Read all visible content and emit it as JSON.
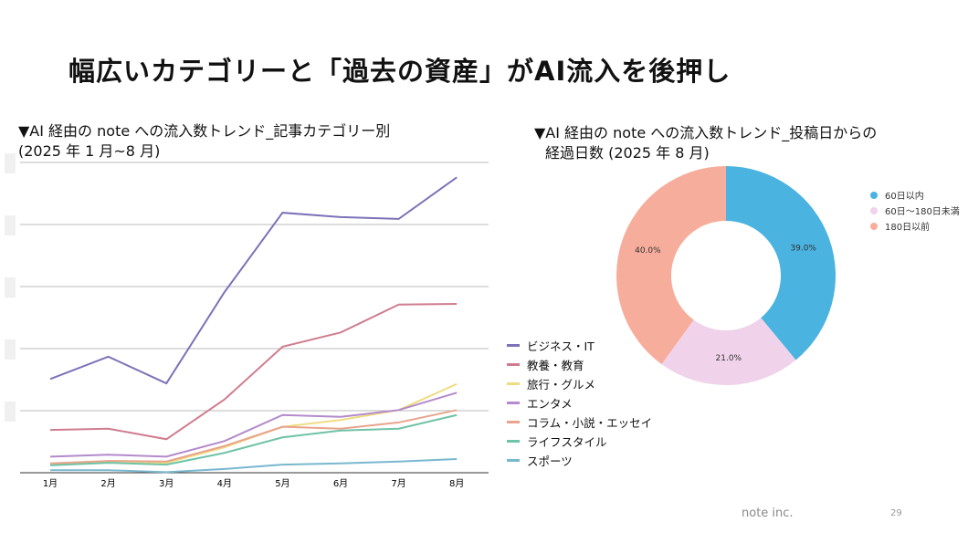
{
  "slide": {
    "title": "幅広いカテゴリーと「過去の資産」がAI流入を後押し",
    "footer": "note inc.",
    "page": "29"
  },
  "chart_data": [
    {
      "type": "line",
      "title_line1": "▼AI 経由の note への流入数トレンド_記事カテゴリー別",
      "title_line2": "(2025 年 1 月~8 月)",
      "categories": [
        "1月",
        "2月",
        "3月",
        "4月",
        "5月",
        "6月",
        "7月",
        "8月"
      ],
      "ylim": [
        0,
        5
      ],
      "grid": true,
      "legend": "right",
      "series": [
        {
          "name": "ビジネス・IT",
          "color": "#7b72b8",
          "values": [
            1.51,
            1.87,
            1.44,
            2.91,
            4.19,
            4.12,
            4.09,
            4.76
          ]
        },
        {
          "name": "教養・教育",
          "color": "#d07c8e",
          "values": [
            0.69,
            0.71,
            0.54,
            1.18,
            2.03,
            2.26,
            2.71,
            2.72
          ]
        },
        {
          "name": "旅行・グルメ",
          "color": "#eedc80",
          "values": [
            0.13,
            0.19,
            0.16,
            0.41,
            0.74,
            0.85,
            1.01,
            1.43
          ]
        },
        {
          "name": "エンタメ",
          "color": "#b38acb",
          "values": [
            0.26,
            0.29,
            0.26,
            0.51,
            0.93,
            0.9,
            1.01,
            1.29
          ]
        },
        {
          "name": "コラム・小説・エッセイ",
          "color": "#e8a48c",
          "values": [
            0.15,
            0.19,
            0.18,
            0.43,
            0.74,
            0.71,
            0.81,
            1.01
          ]
        },
        {
          "name": "ライフスタイル",
          "color": "#6fc3a6",
          "values": [
            0.12,
            0.16,
            0.13,
            0.32,
            0.57,
            0.68,
            0.71,
            0.93
          ]
        },
        {
          "name": "スポーツ",
          "color": "#79b7cf",
          "values": [
            0.04,
            0.04,
            0.01,
            0.06,
            0.13,
            0.15,
            0.18,
            0.22
          ]
        }
      ]
    },
    {
      "type": "pie",
      "donut": true,
      "title_line1": "▼AI 経由の note への流入数トレンド_投稿日からの",
      "title_line2": "経過日数  (2025 年 8 月)",
      "legend": "right",
      "slices": [
        {
          "name": "60日以内",
          "value": 39.0,
          "label": "39.0%",
          "color": "#4ab3e0"
        },
        {
          "name": "60日〜180日未満",
          "value": 21.0,
          "label": "21.0%",
          "color": "#f0d3ea"
        },
        {
          "name": "180日以前",
          "value": 40.0,
          "label": "40.0%",
          "color": "#f7ad9c"
        }
      ]
    }
  ]
}
